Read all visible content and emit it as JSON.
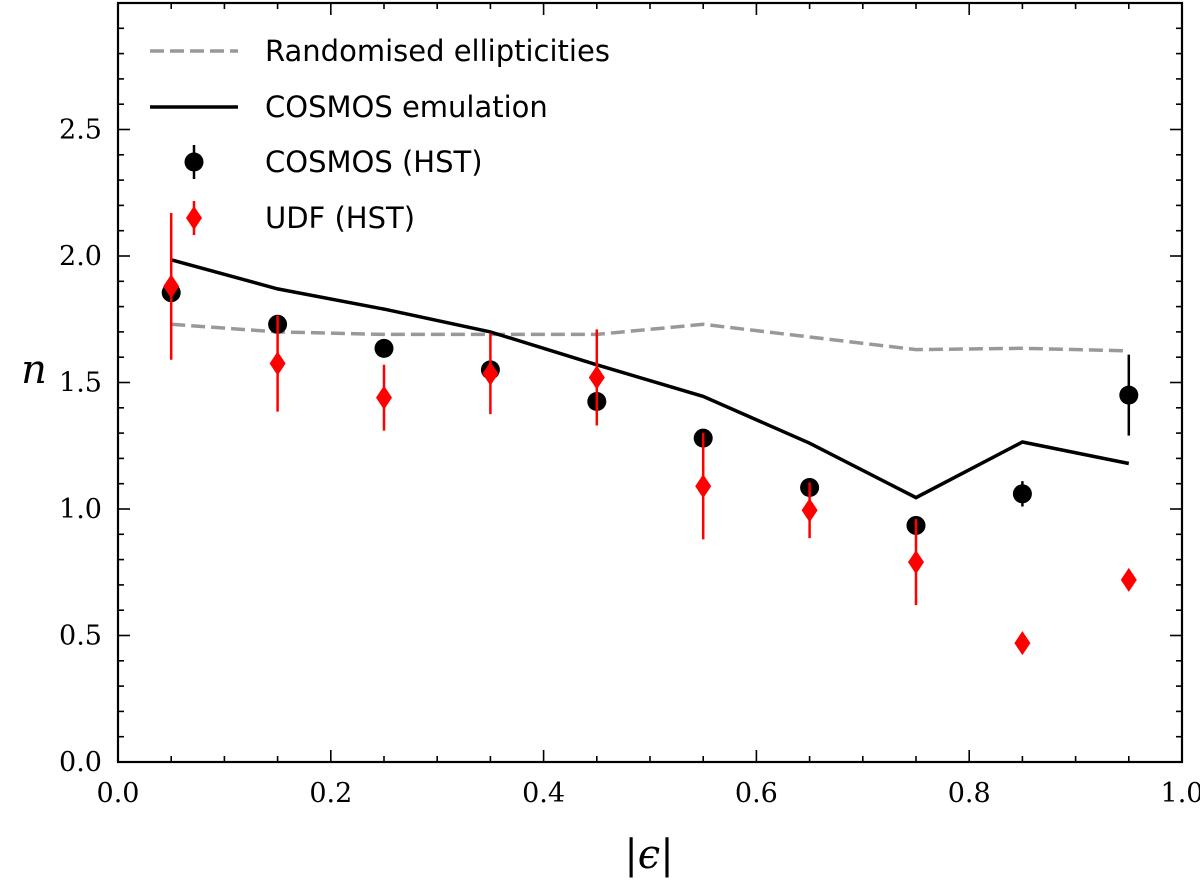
{
  "chart_data": {
    "type": "scatter",
    "title": "",
    "xlabel": "|ϵ|",
    "ylabel": "n",
    "xlim": [
      0.0,
      1.0
    ],
    "ylim": [
      0.0,
      3.0
    ],
    "xticks": [
      "0.0",
      "0.2",
      "0.4",
      "0.6",
      "0.8",
      "1.0"
    ],
    "yticks": [
      "0.0",
      "0.5",
      "1.0",
      "1.5",
      "2.0",
      "2.5"
    ],
    "grid": false,
    "legend_position": "top-left",
    "series": [
      {
        "name": "Randomised ellipticities",
        "kind": "line",
        "style": "dashed",
        "color": "#999999",
        "x": [
          0.05,
          0.15,
          0.25,
          0.35,
          0.45,
          0.55,
          0.65,
          0.75,
          0.85,
          0.95
        ],
        "y": [
          1.73,
          1.7,
          1.69,
          1.69,
          1.69,
          1.73,
          1.68,
          1.63,
          1.635,
          1.625
        ]
      },
      {
        "name": "COSMOS emulation",
        "kind": "line",
        "style": "solid",
        "color": "#000000",
        "x": [
          0.05,
          0.15,
          0.25,
          0.35,
          0.45,
          0.55,
          0.65,
          0.75,
          0.85,
          0.95
        ],
        "y": [
          1.985,
          1.87,
          1.79,
          1.7,
          1.57,
          1.445,
          1.26,
          1.045,
          1.265,
          1.18
        ]
      },
      {
        "name": "COSMOS (HST)",
        "kind": "errorbar",
        "marker": "circle",
        "color": "#000000",
        "x": [
          0.05,
          0.15,
          0.25,
          0.35,
          0.45,
          0.55,
          0.65,
          0.75,
          0.85,
          0.95
        ],
        "y": [
          1.855,
          1.73,
          1.635,
          1.55,
          1.425,
          1.28,
          1.085,
          0.935,
          1.06,
          1.45
        ],
        "yerr": [
          0.0,
          0.0,
          0.0,
          0.0,
          0.0,
          0.0,
          0.0,
          0.0,
          0.05,
          0.16
        ]
      },
      {
        "name": "UDF (HST)",
        "kind": "errorbar",
        "marker": "diamond",
        "color": "#ff0000",
        "x": [
          0.05,
          0.15,
          0.25,
          0.35,
          0.45,
          0.55,
          0.65,
          0.75,
          0.85,
          0.95
        ],
        "y": [
          1.88,
          1.575,
          1.44,
          1.535,
          1.52,
          1.09,
          0.995,
          0.79,
          0.47,
          0.72
        ],
        "yerr": [
          0.29,
          0.19,
          0.13,
          0.16,
          0.19,
          0.21,
          0.11,
          0.17,
          0.0,
          0.0
        ]
      }
    ]
  }
}
